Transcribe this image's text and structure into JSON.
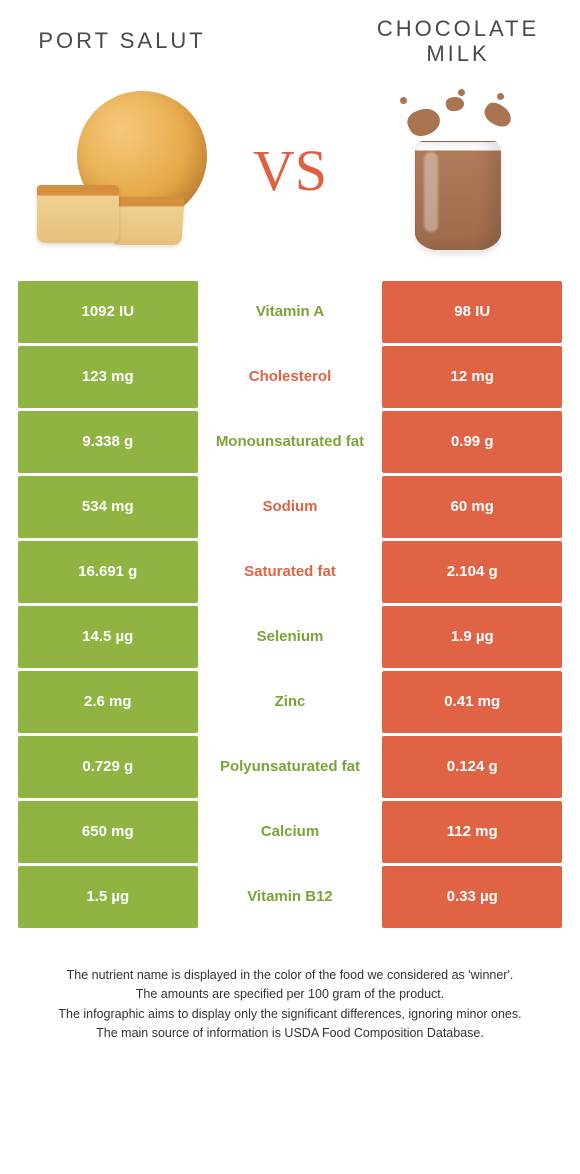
{
  "header": {
    "left_title": "PORT SALUT",
    "right_title": "CHOCOLATE MILK",
    "vs_text": "VS"
  },
  "colors": {
    "left": "#8fb442",
    "right": "#e06345",
    "green_text": "#7ca338",
    "orange_text": "#e06345"
  },
  "rows": [
    {
      "left": "1092 IU",
      "label": "Vitamin A",
      "right": "98 IU",
      "winner": "left"
    },
    {
      "left": "123 mg",
      "label": "Cholesterol",
      "right": "12 mg",
      "winner": "right"
    },
    {
      "left": "9.338 g",
      "label": "Monounsaturated fat",
      "right": "0.99 g",
      "winner": "left"
    },
    {
      "left": "534 mg",
      "label": "Sodium",
      "right": "60 mg",
      "winner": "right"
    },
    {
      "left": "16.691 g",
      "label": "Saturated fat",
      "right": "2.104 g",
      "winner": "right"
    },
    {
      "left": "14.5 µg",
      "label": "Selenium",
      "right": "1.9 µg",
      "winner": "left"
    },
    {
      "left": "2.6 mg",
      "label": "Zinc",
      "right": "0.41 mg",
      "winner": "left"
    },
    {
      "left": "0.729 g",
      "label": "Polyunsaturated fat",
      "right": "0.124 g",
      "winner": "left"
    },
    {
      "left": "650 mg",
      "label": "Calcium",
      "right": "112 mg",
      "winner": "left"
    },
    {
      "left": "1.5 µg",
      "label": "Vitamin B12",
      "right": "0.33 µg",
      "winner": "left"
    }
  ],
  "footnotes": [
    "The nutrient name is displayed in the color of the food we considered as 'winner'.",
    "The amounts are specified per 100 gram of the product.",
    "The infographic aims to display only the significant differences, ignoring minor ones.",
    "The main source of information is USDA Food Composition Database."
  ]
}
